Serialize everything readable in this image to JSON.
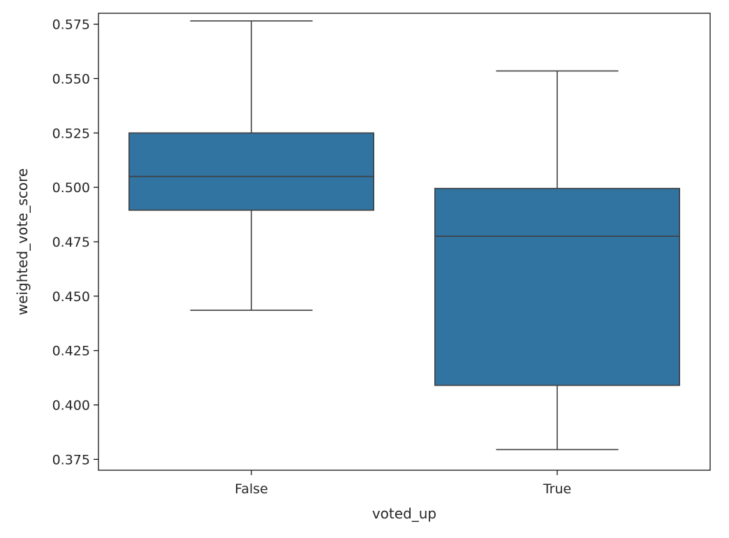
{
  "chart_data": {
    "type": "box",
    "title": "",
    "xlabel": "voted_up",
    "ylabel": "weighted_vote_score",
    "ylim": [
      0.37,
      0.58
    ],
    "yticks": [
      "0.375",
      "0.400",
      "0.425",
      "0.450",
      "0.475",
      "0.500",
      "0.525",
      "0.550",
      "0.575"
    ],
    "categories": [
      "False",
      "True"
    ],
    "boxes": [
      {
        "category": "False",
        "whisker_low": 0.4435,
        "q1": 0.4895,
        "median": 0.505,
        "q3": 0.525,
        "whisker_high": 0.5765
      },
      {
        "category": "True",
        "whisker_low": 0.3795,
        "q1": 0.409,
        "median": 0.4775,
        "q3": 0.4995,
        "whisker_high": 0.5535
      }
    ],
    "box_color": "#3274a1",
    "line_color": "#3f3f3f",
    "grid": false,
    "legend": "none"
  }
}
